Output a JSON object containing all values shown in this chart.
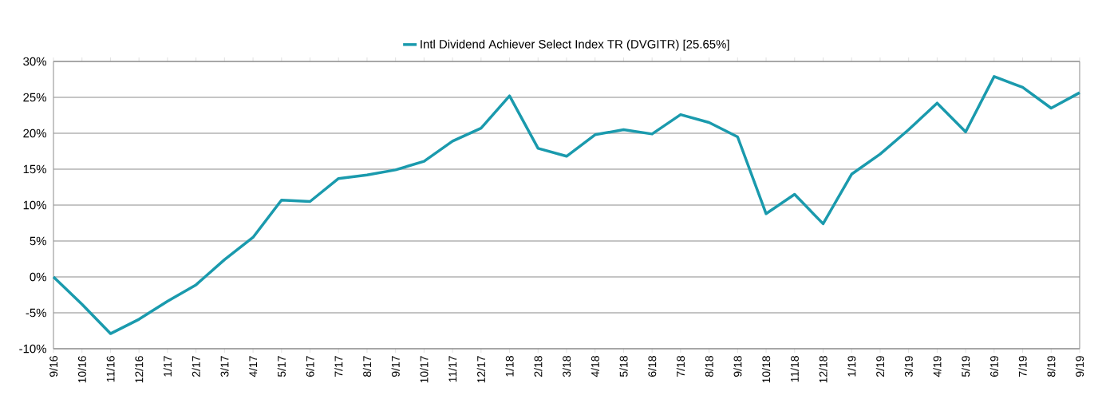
{
  "chart_data": {
    "type": "line",
    "categories": [
      "9/16",
      "10/16",
      "11/16",
      "12/16",
      "1/17",
      "2/17",
      "3/17",
      "4/17",
      "5/17",
      "6/17",
      "7/17",
      "8/17",
      "9/17",
      "10/17",
      "11/17",
      "12/17",
      "1/18",
      "2/18",
      "3/18",
      "4/18",
      "5/18",
      "6/18",
      "7/18",
      "8/18",
      "9/18",
      "10/18",
      "11/18",
      "12/18",
      "1/19",
      "2/19",
      "3/19",
      "4/19",
      "5/19",
      "6/19",
      "7/19",
      "8/19",
      "9/19"
    ],
    "series": [
      {
        "name": "Intl Dividend Achiever Select Index TR (DVGITR) [25.65%]",
        "color": "#1a9aad",
        "values": [
          0,
          -3.8,
          -7.9,
          -5.9,
          -3.4,
          -1.1,
          2.4,
          5.5,
          10.7,
          10.5,
          13.7,
          14.2,
          14.9,
          16.1,
          18.9,
          20.7,
          25.2,
          17.9,
          16.8,
          19.8,
          20.5,
          19.9,
          22.6,
          21.5,
          19.5,
          8.8,
          11.5,
          7.4,
          14.3,
          17.1,
          20.5,
          24.2,
          20.2,
          27.9,
          26.4,
          23.5,
          25.65
        ]
      }
    ],
    "ylim": [
      -10,
      30
    ],
    "yticks": [
      {
        "value": -10,
        "label": "-10%"
      },
      {
        "value": -5,
        "label": "-5%"
      },
      {
        "value": 0,
        "label": "0%"
      },
      {
        "value": 5,
        "label": "5%"
      },
      {
        "value": 10,
        "label": "10%"
      },
      {
        "value": 15,
        "label": "15%"
      },
      {
        "value": 20,
        "label": "20%"
      },
      {
        "value": 25,
        "label": "25%"
      },
      {
        "value": 30,
        "label": "30%"
      }
    ],
    "grid": "y",
    "legend": "top",
    "marker": "none",
    "line_style": "solid"
  }
}
